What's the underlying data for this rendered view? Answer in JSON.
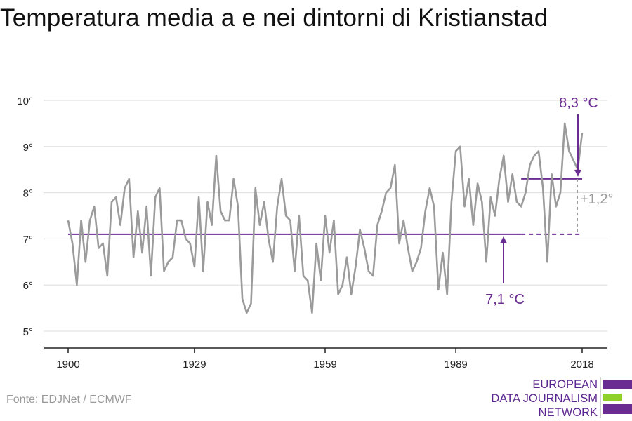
{
  "title": "Temperatura media a e nei dintorni di Kristianstad",
  "source": "Fonte: EDJNet / ECMWF",
  "logo": {
    "line1": "EUROPEAN",
    "line2": "DATA JOURNALISM",
    "line3": "NETWORK"
  },
  "colors": {
    "series": "#9b9b9b",
    "accent": "#6a2c91",
    "grid": "#dddddd",
    "axis": "#222222",
    "diff": "#9b9b9b"
  },
  "chart_data": {
    "type": "line",
    "title": "Temperatura media a e nei dintorni di Kristianstad",
    "xlabel": "",
    "ylabel": "",
    "xlim": [
      1900,
      2018
    ],
    "ylim": [
      4.5,
      10.3
    ],
    "x_ticks": [
      1900,
      1929,
      1959,
      1989,
      2018
    ],
    "y_ticks": [
      5,
      6,
      7,
      8,
      9,
      10
    ],
    "y_tick_labels": [
      "5°",
      "6°",
      "7°",
      "8°",
      "9°",
      "10°"
    ],
    "grid": true,
    "series": [
      {
        "x": [
          1900,
          1901,
          1902,
          1903,
          1904,
          1905,
          1906,
          1907,
          1908,
          1909,
          1910,
          1911,
          1912,
          1913,
          1914,
          1915,
          1916,
          1917,
          1918,
          1919,
          1920,
          1921,
          1922,
          1923,
          1924,
          1925,
          1926,
          1927,
          1928,
          1929,
          1930,
          1931,
          1932,
          1933,
          1934,
          1935,
          1936,
          1937,
          1938,
          1939,
          1940,
          1941,
          1942,
          1943,
          1944,
          1945,
          1946,
          1947,
          1948,
          1949,
          1950,
          1951,
          1952,
          1953,
          1954,
          1955,
          1956,
          1957,
          1958,
          1959,
          1960,
          1961,
          1962,
          1963,
          1964,
          1965,
          1966,
          1967,
          1968,
          1969,
          1970,
          1971,
          1972,
          1973,
          1974,
          1975,
          1976,
          1977,
          1978,
          1979,
          1980,
          1981,
          1982,
          1983,
          1984,
          1985,
          1986,
          1987,
          1988,
          1989,
          1990,
          1991,
          1992,
          1993,
          1994,
          1995,
          1996,
          1997,
          1998,
          1999,
          2000,
          2001,
          2002,
          2003,
          2004,
          2005,
          2006,
          2007,
          2008,
          2009,
          2010,
          2011,
          2012,
          2013,
          2014,
          2015,
          2016,
          2017,
          2018
        ],
        "values": [
          7.4,
          6.9,
          6.0,
          7.4,
          6.5,
          7.4,
          7.7,
          6.8,
          6.9,
          6.2,
          7.8,
          7.9,
          7.3,
          8.1,
          8.3,
          6.6,
          7.6,
          6.7,
          7.7,
          6.2,
          7.9,
          8.1,
          6.3,
          6.5,
          6.6,
          7.4,
          7.4,
          7.0,
          6.9,
          6.4,
          7.9,
          6.3,
          7.8,
          7.3,
          8.8,
          7.6,
          7.4,
          7.4,
          8.3,
          7.7,
          5.7,
          5.4,
          5.6,
          8.1,
          7.3,
          7.8,
          7.0,
          6.5,
          7.7,
          8.3,
          7.5,
          7.4,
          6.3,
          7.5,
          6.2,
          6.1,
          5.4,
          6.9,
          6.1,
          7.5,
          6.7,
          7.4,
          5.8,
          6.0,
          6.6,
          5.8,
          6.4,
          7.2,
          6.8,
          6.3,
          6.2,
          7.3,
          7.6,
          8.0,
          8.1,
          8.6,
          6.9,
          7.4,
          6.8,
          6.3,
          6.5,
          6.8,
          7.6,
          8.1,
          7.7,
          5.9,
          6.7,
          5.8,
          7.8,
          8.9,
          9.0,
          7.7,
          8.3,
          7.3,
          8.2,
          7.8,
          6.5,
          7.9,
          7.5,
          8.3,
          8.8,
          7.8,
          8.4,
          7.8,
          7.7,
          8.0,
          8.6,
          8.8,
          8.9,
          8.1,
          6.5,
          8.4,
          7.7,
          8.0,
          9.5,
          8.9,
          8.7,
          8.5,
          9.3
        ]
      }
    ],
    "baseline": {
      "value": 7.1,
      "label": "7,1 °C",
      "from": 1900,
      "to": 2004
    },
    "recent": {
      "value": 8.3,
      "label": "8,3 °C",
      "from": 2004,
      "to": 2018
    },
    "difference_label": "+1,2°"
  }
}
